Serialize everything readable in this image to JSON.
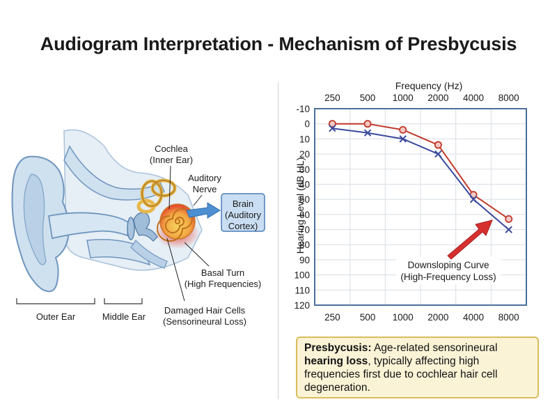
{
  "title": "Audiogram Interpretation - Mechanism of Presbycusis",
  "anatomy": {
    "cochlea_label": [
      "Cochlea",
      "(Inner Ear)"
    ],
    "auditory_nerve_label": [
      "Auditory",
      "Nerve"
    ],
    "brain_label": [
      "Brain",
      "(Auditory",
      "Cortex)"
    ],
    "basal_turn_label": [
      "Basal Turn",
      "(High Frequencies)"
    ],
    "damaged_cells_label": [
      "Damaged Hair Cells",
      "(Sensorineural Loss)"
    ],
    "outer_ear_label": "Outer Ear",
    "middle_ear_label": "Middle Ear",
    "colors": {
      "tissue": "#cfe0ef",
      "tissue_stroke": "#6e95bd",
      "cochlea": "#f5c84a",
      "damage": "#e03b2a",
      "nerve": "#4d8fd1",
      "brain_box": "#c9def2"
    }
  },
  "chart_data": {
    "type": "line",
    "top_axis_title": "Frequency (Hz)",
    "ylabel": "Hearing Level (dB HL)",
    "categories": [
      "250",
      "500",
      "1000",
      "2000",
      "4000",
      "8000"
    ],
    "y_ticks": [
      -10,
      0,
      10,
      20,
      30,
      40,
      50,
      60,
      70,
      80,
      90,
      100,
      110,
      120
    ],
    "ylim": [
      -10,
      120
    ],
    "y_inverted": true,
    "grid": true,
    "series": [
      {
        "marker": "circle",
        "color": "#c0392b",
        "values": [
          0,
          0,
          4,
          14,
          47,
          63
        ]
      },
      {
        "marker": "x",
        "color": "#3b4a9c",
        "values": [
          3,
          6,
          10,
          20,
          50,
          70
        ]
      }
    ],
    "annotation": [
      "Downsloping Curve",
      "(High-Frequency Loss)"
    ],
    "colors": {
      "frame": "#4a6f9b",
      "grid": "#d8dde3",
      "arrow": "#d62f2f"
    }
  },
  "info_box": {
    "term": "Presbycusis:",
    "text_1": " Age-related sensorineural ",
    "emphasis": "hearing loss",
    "text_2": ", typically affecting high frequencies first due to cochlear hair cell degeneration."
  }
}
